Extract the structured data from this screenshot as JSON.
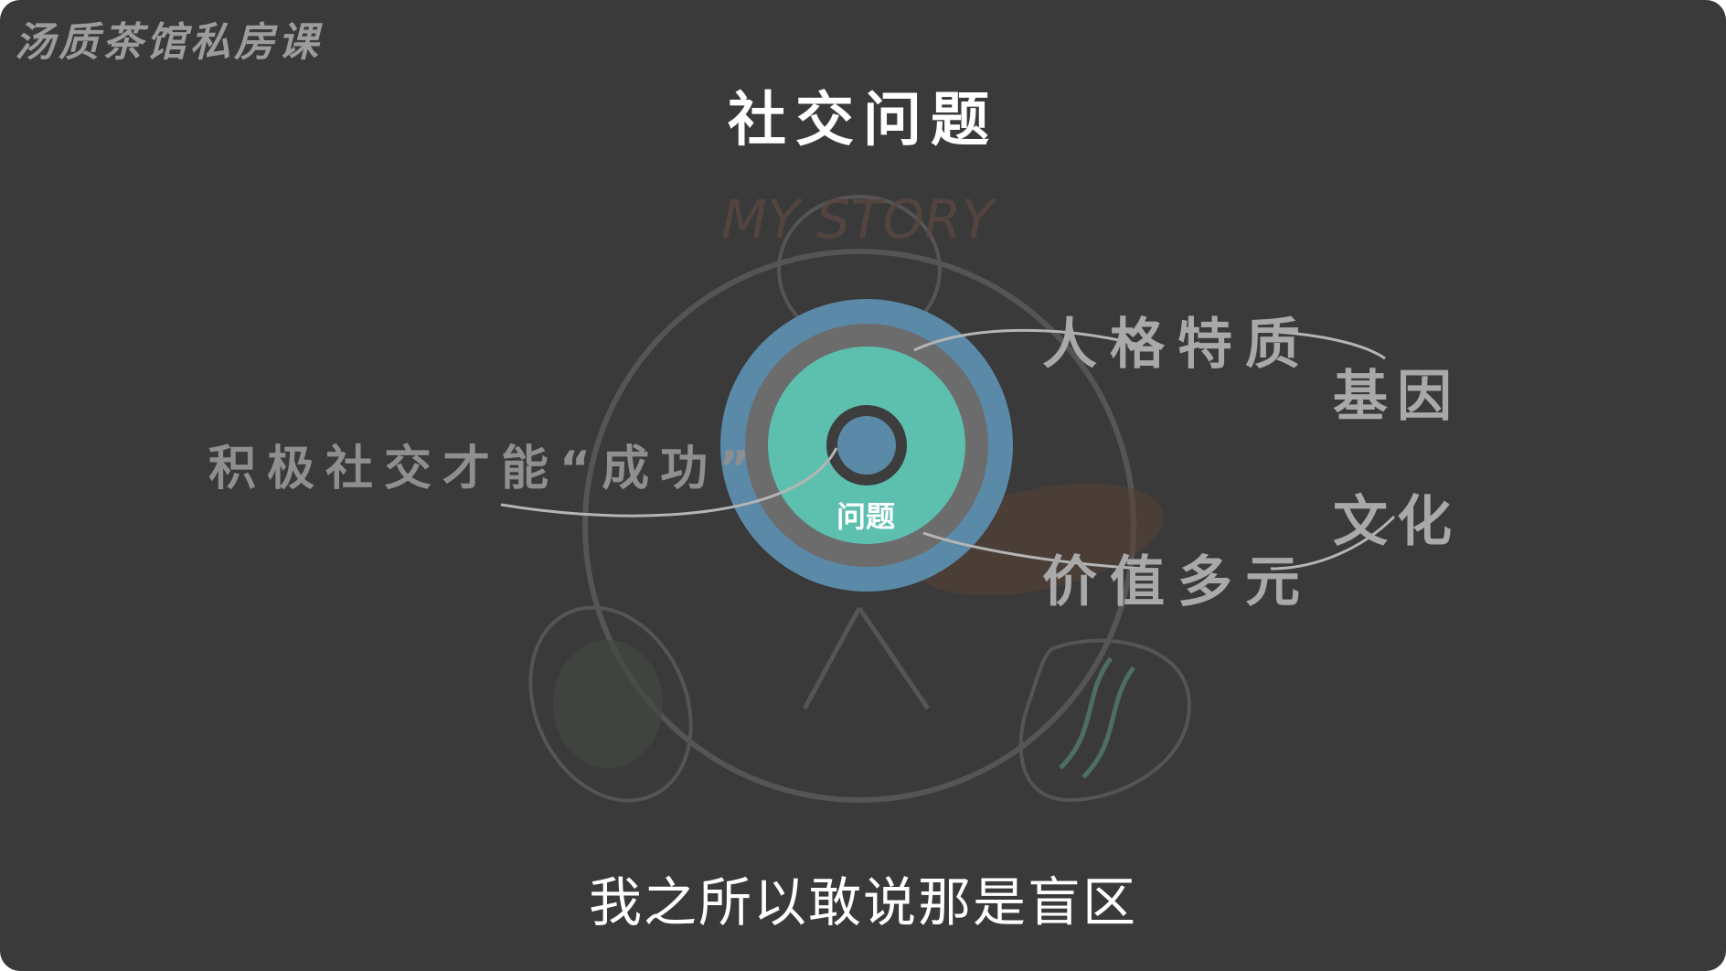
{
  "watermark": "汤质茶馆私房课",
  "title": "社交问题",
  "diagram": {
    "center_label": "问题",
    "labels": {
      "personality": "人格特质",
      "gene": "基因",
      "values": "价值多元",
      "culture": "文化",
      "active_social": "积极社交才能“成功”"
    },
    "sketch_text": "MY STORY",
    "colors": {
      "background": "#3a3a3a",
      "outer_ring": "#5b8aa8",
      "middle_ring": "#6c6c6c",
      "inner_disc": "#5dbfae",
      "core_ring": "#3d3d3d",
      "core": "#5b8aa8",
      "connector": "#b5b5b5",
      "label": "#a9a9a9"
    }
  },
  "subtitle": "我之所以敢说那是盲区"
}
